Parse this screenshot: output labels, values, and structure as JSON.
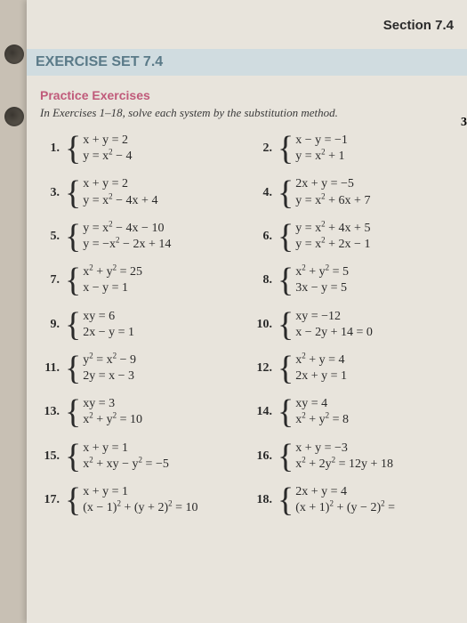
{
  "section_header": "Section 7.4",
  "exercise_set": "EXERCISE SET 7.4",
  "practice_label": "Practice Exercises",
  "instructions": "In Exercises 1–18, solve each system by the substitution method.",
  "edge_num": "3",
  "left_col": [
    {
      "n": "1.",
      "a": "x + y = 2",
      "b": "y = x² − 4"
    },
    {
      "n": "3.",
      "a": "x + y = 2",
      "b": "y = x² − 4x + 4"
    },
    {
      "n": "5.",
      "a": "y =   x² − 4x − 10",
      "b": "y = −x² − 2x + 14"
    },
    {
      "n": "7.",
      "a": "x² + y² = 25",
      "b": "x − y = 1"
    },
    {
      "n": "9.",
      "a": "xy = 6",
      "b": "2x − y = 1"
    },
    {
      "n": "11.",
      "a": "y² = x² − 9",
      "b": "2y = x − 3"
    },
    {
      "n": "13.",
      "a": "xy = 3",
      "b": "x² + y² = 10"
    },
    {
      "n": "15.",
      "a": "x + y = 1",
      "b": "x² + xy − y² = −5"
    },
    {
      "n": "17.",
      "a": "x + y = 1",
      "b": "(x − 1)² + (y + 2)² = 10"
    }
  ],
  "right_col": [
    {
      "n": "2.",
      "a": "x − y = −1",
      "b": "y = x² + 1"
    },
    {
      "n": "4.",
      "a": "2x + y = −5",
      "b": "y = x² + 6x + 7"
    },
    {
      "n": "6.",
      "a": "y = x² + 4x + 5",
      "b": "y = x² + 2x − 1"
    },
    {
      "n": "8.",
      "a": "x² + y² = 5",
      "b": "3x − y = 5"
    },
    {
      "n": "10.",
      "a": "xy = −12",
      "b": "x − 2y + 14 = 0"
    },
    {
      "n": "12.",
      "a": "x² + y = 4",
      "b": "2x + y = 1"
    },
    {
      "n": "14.",
      "a": "xy = 4",
      "b": "x² + y² = 8"
    },
    {
      "n": "16.",
      "a": "x + y = −3",
      "b": "x² + 2y² = 12y + 18"
    },
    {
      "n": "18.",
      "a": "2x + y = 4",
      "b": "(x + 1)² + (y − 2)² ="
    }
  ]
}
